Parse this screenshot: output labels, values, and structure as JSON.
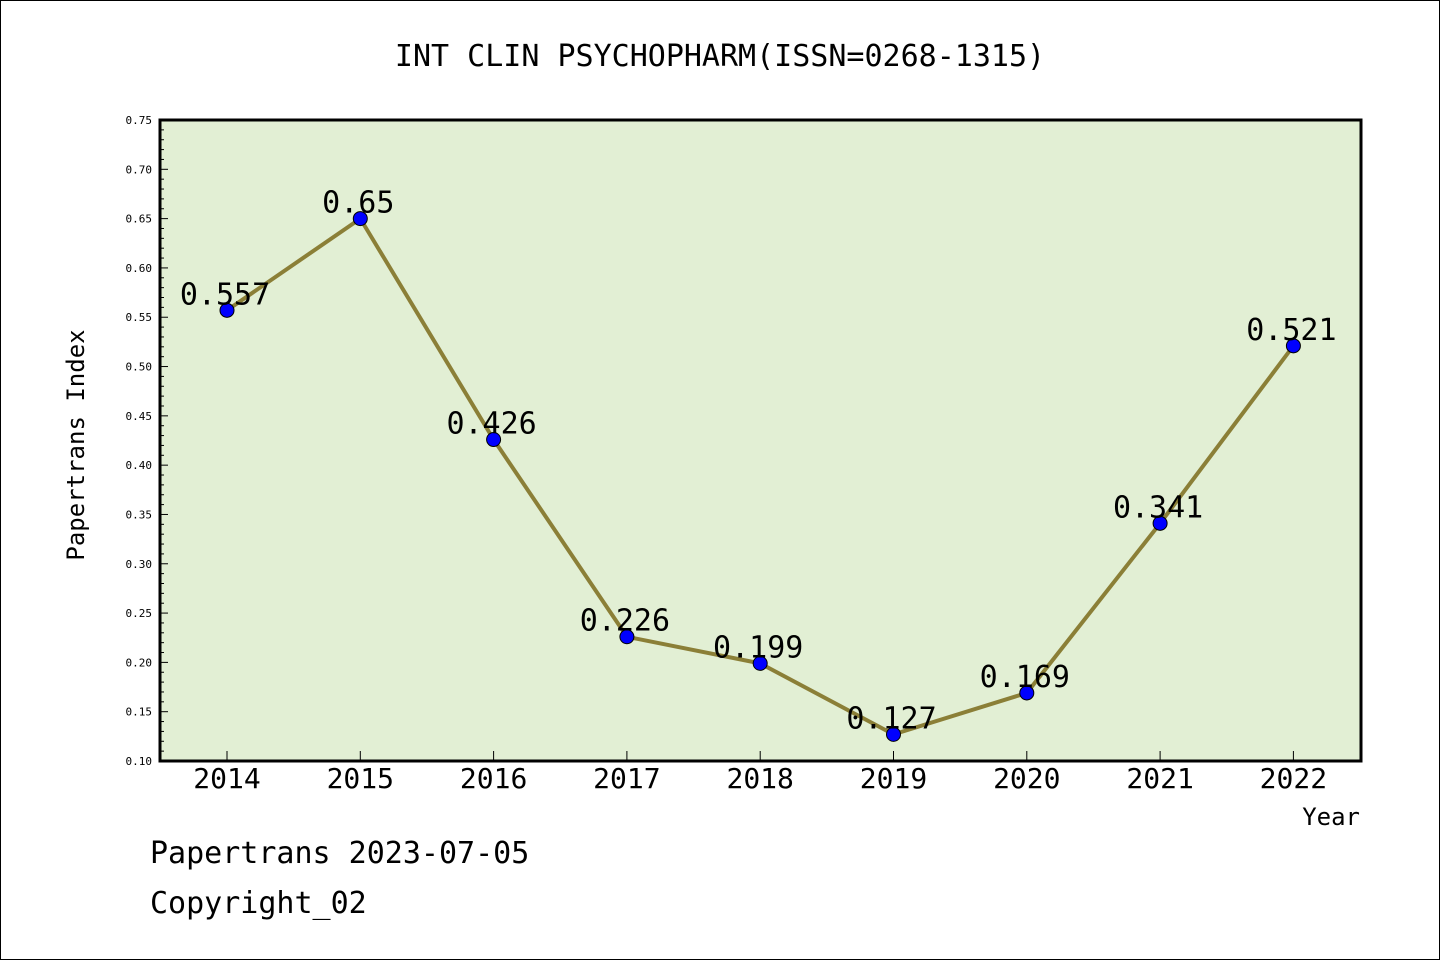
{
  "chart_data": {
    "type": "line",
    "title": "INT CLIN PSYCHOPHARM(ISSN=0268-1315)",
    "xlabel": "Year",
    "ylabel": "Papertrans Index",
    "categories": [
      "2014",
      "2015",
      "2016",
      "2017",
      "2018",
      "2019",
      "2020",
      "2021",
      "2022"
    ],
    "series": [
      {
        "values": [
          0.557,
          0.65,
          0.426,
          0.226,
          0.199,
          0.127,
          0.169,
          0.341,
          0.521
        ],
        "data_labels": [
          "0.557",
          "0.65",
          "0.426",
          "0.226",
          "0.199",
          "0.127",
          "0.169",
          "0.341",
          "0.521"
        ]
      }
    ],
    "ylim": [
      0.1,
      0.75
    ],
    "yticks": [
      "0.10",
      "0.15",
      "0.20",
      "0.25",
      "0.30",
      "0.35",
      "0.40",
      "0.45",
      "0.50",
      "0.55",
      "0.60",
      "0.65",
      "0.70",
      "0.75"
    ],
    "grid": false,
    "legend": "none",
    "colors": {
      "plot_bg": "#e2efd4",
      "line": "#8b7f37",
      "marker": "#0000ff"
    }
  },
  "footer": {
    "line1": "Papertrans 2023-07-05",
    "line2": "Copyright_02"
  }
}
